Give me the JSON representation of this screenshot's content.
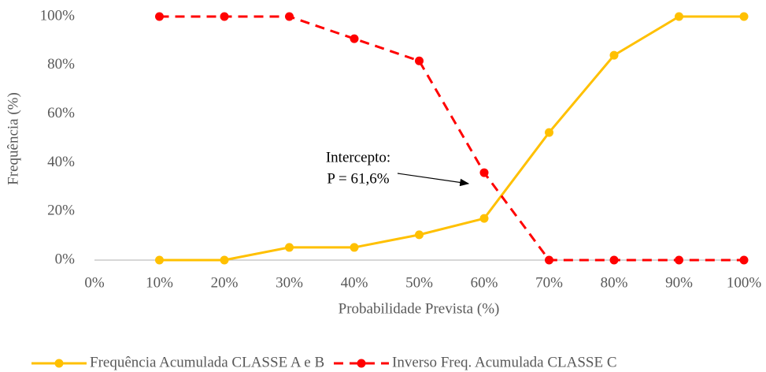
{
  "chart_data": {
    "type": "line",
    "x_label": "Probabilidade Prevista (%)",
    "y_label": "Frequência (%)",
    "x": [
      10,
      20,
      30,
      40,
      50,
      60,
      70,
      80,
      90,
      100
    ],
    "series": [
      {
        "name": "Frequência Acumulada CLASSE A e B",
        "color": "#FFC000",
        "dashed": false,
        "values": [
          0,
          0,
          5.2,
          5.2,
          10.4,
          17.1,
          52.4,
          84.1,
          100,
          100
        ]
      },
      {
        "name": "Inverso Freq. Acumulada CLASSE C",
        "color": "#FF0000",
        "dashed": true,
        "values": [
          100,
          100,
          100,
          90.9,
          81.8,
          35.9,
          0,
          0,
          0,
          0
        ]
      }
    ],
    "xlim": [
      0,
      100
    ],
    "xticks": [
      {
        "value": 0,
        "label": "0%"
      },
      {
        "value": 10,
        "label": "10%"
      },
      {
        "value": 20,
        "label": "20%"
      },
      {
        "value": 30,
        "label": "30%"
      },
      {
        "value": 40,
        "label": "40%"
      },
      {
        "value": 50,
        "label": "50%"
      },
      {
        "value": 60,
        "label": "60%"
      },
      {
        "value": 70,
        "label": "70%"
      },
      {
        "value": 80,
        "label": "80%"
      },
      {
        "value": 90,
        "label": "90%"
      },
      {
        "value": 100,
        "label": "100%"
      }
    ],
    "ylim": [
      0,
      100
    ],
    "yticks": [
      {
        "value": 0,
        "label": "0%"
      },
      {
        "value": 20,
        "label": "20%"
      },
      {
        "value": 40,
        "label": "40%"
      },
      {
        "value": 60,
        "label": "60%"
      },
      {
        "value": 80,
        "label": "80%"
      },
      {
        "value": 100,
        "label": "100%"
      }
    ],
    "grid": false,
    "legend": "bottom",
    "annotation": [
      "Intercepto:",
      "P = 61,6%"
    ]
  }
}
